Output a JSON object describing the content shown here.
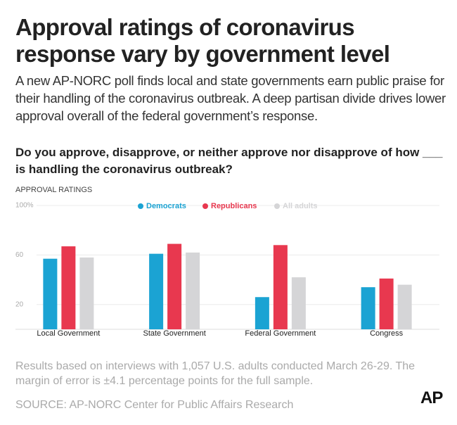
{
  "header": {
    "title": "Approval ratings of coronavirus response vary by government level",
    "subtitle": "A new AP-NORC poll finds local and state governments earn public praise for their handling of the coronavirus outbreak. A deep partisan divide drives lower approval overall of the federal government’s response.",
    "question": "Do you approve, disapprove, or neither approve nor disapprove of how ___ is handling the coronavirus outbreak?"
  },
  "chart_data": {
    "type": "bar",
    "title": "APPROVAL RATINGS",
    "categories": [
      "Local Government",
      "State Government",
      "Federal Government",
      "Congress"
    ],
    "series": [
      {
        "name": "Democrats",
        "color": "#1ba3d3",
        "values": [
          57,
          61,
          26,
          34
        ]
      },
      {
        "name": "Republicans",
        "color": "#e8384f",
        "values": [
          67,
          69,
          68,
          41
        ]
      },
      {
        "name": "All adults",
        "color": "#d5d5d7",
        "values": [
          58,
          62,
          42,
          36
        ]
      }
    ],
    "ylim": [
      0,
      100
    ],
    "yticks": [
      20,
      60,
      {
        "value": 100,
        "label": "100%"
      }
    ],
    "grid": true
  },
  "footer": {
    "note": "Results based on interviews with 1,057 U.S. adults conducted March 26-29. The margin of error is ±4.1 percentage points for the full sample.",
    "source": "SOURCE: AP-NORC Center for Public Affairs Research",
    "logo": "AP"
  }
}
